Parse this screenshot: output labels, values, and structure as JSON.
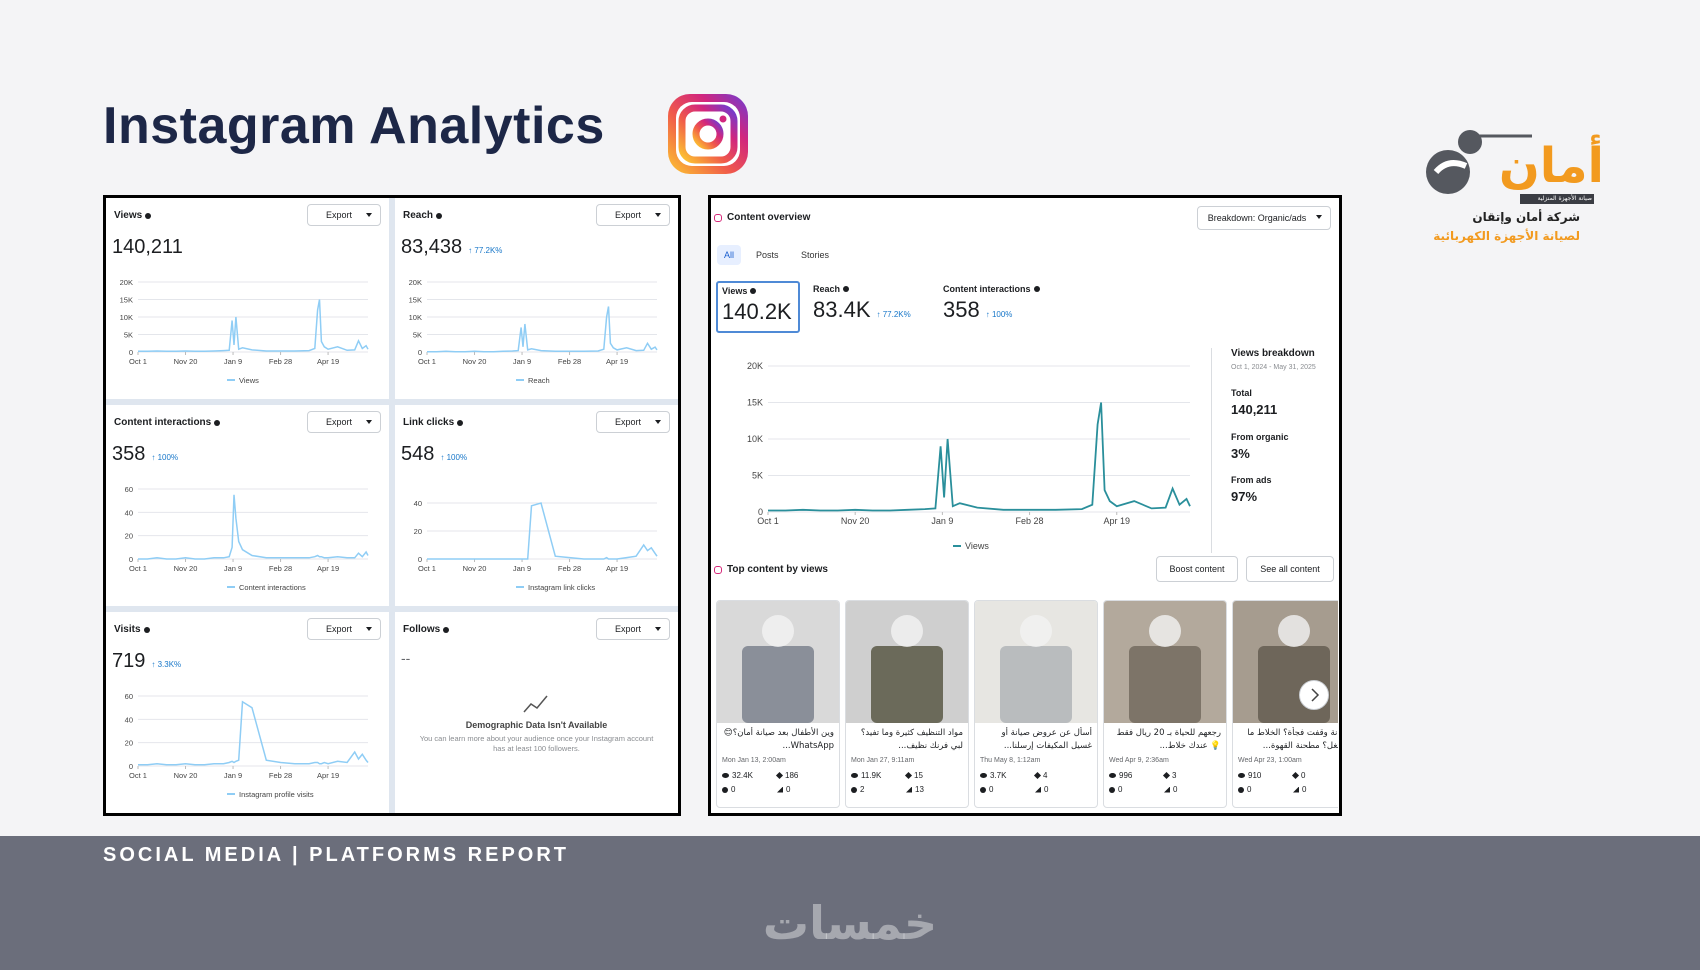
{
  "title": "Instagram Analytics",
  "logo": {
    "brand": "أمان",
    "strip": "صيانة الأجهزة المنزلية",
    "company": "شركة أمان وإتقان",
    "tagline": "لصيانة الأجهزة الكهربائية"
  },
  "dates": {
    "xlim": [
      0,
      242
    ],
    "x": [
      0,
      10,
      20,
      30,
      40,
      50,
      60,
      70,
      80,
      90,
      96,
      99,
      101,
      103,
      106,
      110,
      120,
      135,
      150,
      165,
      180,
      186,
      189,
      191,
      193,
      196,
      200,
      210,
      220,
      228,
      232,
      236,
      240,
      242
    ],
    "xticks": [
      {
        "value": 0,
        "label": "Oct 1"
      },
      {
        "value": 50,
        "label": "Nov 20"
      },
      {
        "value": 100,
        "label": "Jan 9"
      },
      {
        "value": 150,
        "label": "Feb 28"
      },
      {
        "value": 200,
        "label": "Apr 19"
      }
    ]
  },
  "metric_cards": [
    {
      "title": "Views",
      "total": "140,211",
      "button": "Export",
      "legend": "Views",
      "chart": {
        "type": "line",
        "color": "#8fcdf5",
        "ylim": [
          0,
          20000
        ],
        "yticks": [
          0,
          {
            "value": 5000,
            "label": "5K"
          },
          {
            "value": 10000,
            "label": "10K"
          },
          {
            "value": 15000,
            "label": "15K"
          },
          {
            "value": 20000,
            "label": "20K"
          }
        ],
        "values": [
          200,
          200,
          300,
          200,
          200,
          300,
          200,
          200,
          300,
          400,
          500,
          9000,
          2000,
          10000,
          800,
          1200,
          600,
          300,
          300,
          300,
          400,
          1000,
          12000,
          15000,
          3000,
          1500,
          800,
          1500,
          500,
          600,
          3200,
          1000,
          1800,
          800
        ]
      }
    },
    {
      "title": "Reach",
      "total": "83,438",
      "change": "↑ 77.2K%",
      "button": "Export",
      "legend": "Reach",
      "chart": {
        "type": "line",
        "color": "#8fcdf5",
        "ylim": [
          0,
          20000
        ],
        "yticks": [
          0,
          {
            "value": 5000,
            "label": "5K"
          },
          {
            "value": 10000,
            "label": "10K"
          },
          {
            "value": 15000,
            "label": "15K"
          },
          {
            "value": 20000,
            "label": "20K"
          }
        ],
        "values": [
          100,
          100,
          200,
          100,
          100,
          200,
          100,
          100,
          200,
          300,
          400,
          7000,
          1500,
          8000,
          600,
          900,
          400,
          200,
          200,
          200,
          300,
          800,
          10000,
          13000,
          2500,
          1200,
          600,
          1200,
          400,
          500,
          2500,
          800,
          1400,
          600
        ]
      }
    },
    {
      "title": "Content interactions",
      "total": "358",
      "change": "↑ 100%",
      "button": "Export",
      "legend": "Content interactions",
      "chart": {
        "type": "line",
        "color": "#8fcdf5",
        "ylim": [
          0,
          60
        ],
        "yticks": [
          0,
          20,
          40,
          60
        ],
        "values": [
          0,
          0,
          1,
          0,
          0,
          1,
          0,
          0,
          1,
          1,
          2,
          10,
          55,
          35,
          15,
          8,
          3,
          1,
          1,
          1,
          1,
          2,
          3,
          2,
          2,
          1,
          1,
          2,
          1,
          1,
          5,
          2,
          6,
          3
        ]
      }
    },
    {
      "title": "Link clicks",
      "total": "548",
      "change": "↑ 100%",
      "button": "Export",
      "legend": "Instagram link clicks",
      "chart": {
        "type": "line",
        "color": "#8fcdf5",
        "ylim": [
          0,
          50
        ],
        "yticks": [
          0,
          20,
          40
        ],
        "values": [
          0,
          0,
          0,
          0,
          0,
          0,
          0,
          0,
          0,
          0,
          0,
          0,
          0,
          0,
          0,
          38,
          40,
          2,
          1,
          0,
          0,
          0,
          1,
          0,
          0,
          0,
          0,
          1,
          2,
          10,
          6,
          8,
          4,
          2
        ]
      }
    },
    {
      "title": "Visits",
      "total": "719",
      "change": "↑ 3.3K%",
      "button": "Export",
      "legend": "Instagram profile visits",
      "chart": {
        "type": "line",
        "color": "#8fcdf5",
        "ylim": [
          0,
          60
        ],
        "yticks": [
          0,
          20,
          40,
          60
        ],
        "values": [
          1,
          1,
          2,
          1,
          1,
          2,
          1,
          1,
          2,
          2,
          3,
          4,
          3,
          4,
          5,
          55,
          50,
          5,
          3,
          2,
          2,
          3,
          3,
          2,
          2,
          3,
          2,
          4,
          3,
          12,
          6,
          10,
          5,
          3
        ]
      }
    }
  ],
  "follows_card": {
    "title": "Follows",
    "total": "--",
    "button": "Export",
    "heading": "Demographic Data Isn't Available",
    "message": "You can learn more about your audience once your Instagram account has at least 100 followers."
  },
  "content_overview": {
    "title": "Content overview",
    "breakdown_button": "Breakdown: Organic/ads",
    "tabs": [
      "All",
      "Posts",
      "Stories"
    ],
    "metrics": [
      {
        "label": "Views",
        "value": "140.2K"
      },
      {
        "label": "Reach",
        "value": "83.4K",
        "change": "↑ 77.2K%"
      },
      {
        "label": "Content interactions",
        "value": "358",
        "change": "↑ 100%"
      }
    ],
    "legend": "Views",
    "chart": {
      "type": "line",
      "color": "#2a8f9b",
      "ylim": [
        0,
        20000
      ],
      "yticks": [
        0,
        {
          "value": 5000,
          "label": "5K"
        },
        {
          "value": 10000,
          "label": "10K"
        },
        {
          "value": 15000,
          "label": "15K"
        },
        {
          "value": 20000,
          "label": "20K"
        }
      ],
      "values": [
        200,
        200,
        300,
        200,
        200,
        300,
        200,
        200,
        300,
        400,
        500,
        9000,
        2000,
        10000,
        800,
        1200,
        600,
        300,
        300,
        300,
        400,
        1000,
        12000,
        15000,
        3000,
        1500,
        800,
        1500,
        500,
        600,
        3200,
        1000,
        1800,
        800
      ]
    },
    "breakdown": {
      "title": "Views breakdown",
      "range": "Oct 1, 2024 - May 31, 2025",
      "items": [
        {
          "label": "Total",
          "value": "140,211"
        },
        {
          "label": "From organic",
          "value": "3%"
        },
        {
          "label": "From ads",
          "value": "97%"
        }
      ]
    }
  },
  "top_content": {
    "title": "Top content by views",
    "buttons": [
      "Boost content",
      "See all content"
    ],
    "posts": [
      {
        "caption": "وين الأطفال بعد صيانة أمان؟😊 WhatsApp...",
        "date": "Mon Jan 13, 2:00am",
        "views": "32.4K",
        "likes": "186",
        "comments": "0",
        "shares": "0"
      },
      {
        "caption": "مواد التنظيف كثيرة وما تفيد؟ لبي فرنك نظيف...",
        "date": "Mon Jan 27, 9:11am",
        "views": "11.9K",
        "likes": "15",
        "comments": "2",
        "shares": "13"
      },
      {
        "caption": "أسأل عن عروض صيانة أو غسيل المكيفات إرسلنا...",
        "date": "Thu May 8, 1:12am",
        "views": "3.7K",
        "likes": "4",
        "comments": "0",
        "shares": "0"
      },
      {
        "caption": "رجعهم للحياة بـ 20 ريال فقط 💡 عندك خلاط...",
        "date": "Wed Apr 9, 2:36am",
        "views": "996",
        "likes": "3",
        "comments": "0",
        "shares": "0"
      },
      {
        "caption": "مجانة وقفت فجأة؟ الخلاط ما يشتغل؟ مطحنة القهوة...",
        "date": "Wed Apr 23, 1:00am",
        "views": "910",
        "likes": "0",
        "comments": "0",
        "shares": "0"
      }
    ]
  },
  "footer": {
    "label": "SOCIAL MEDIA | PLATFORMS REPORT",
    "watermark": "خمسات"
  }
}
